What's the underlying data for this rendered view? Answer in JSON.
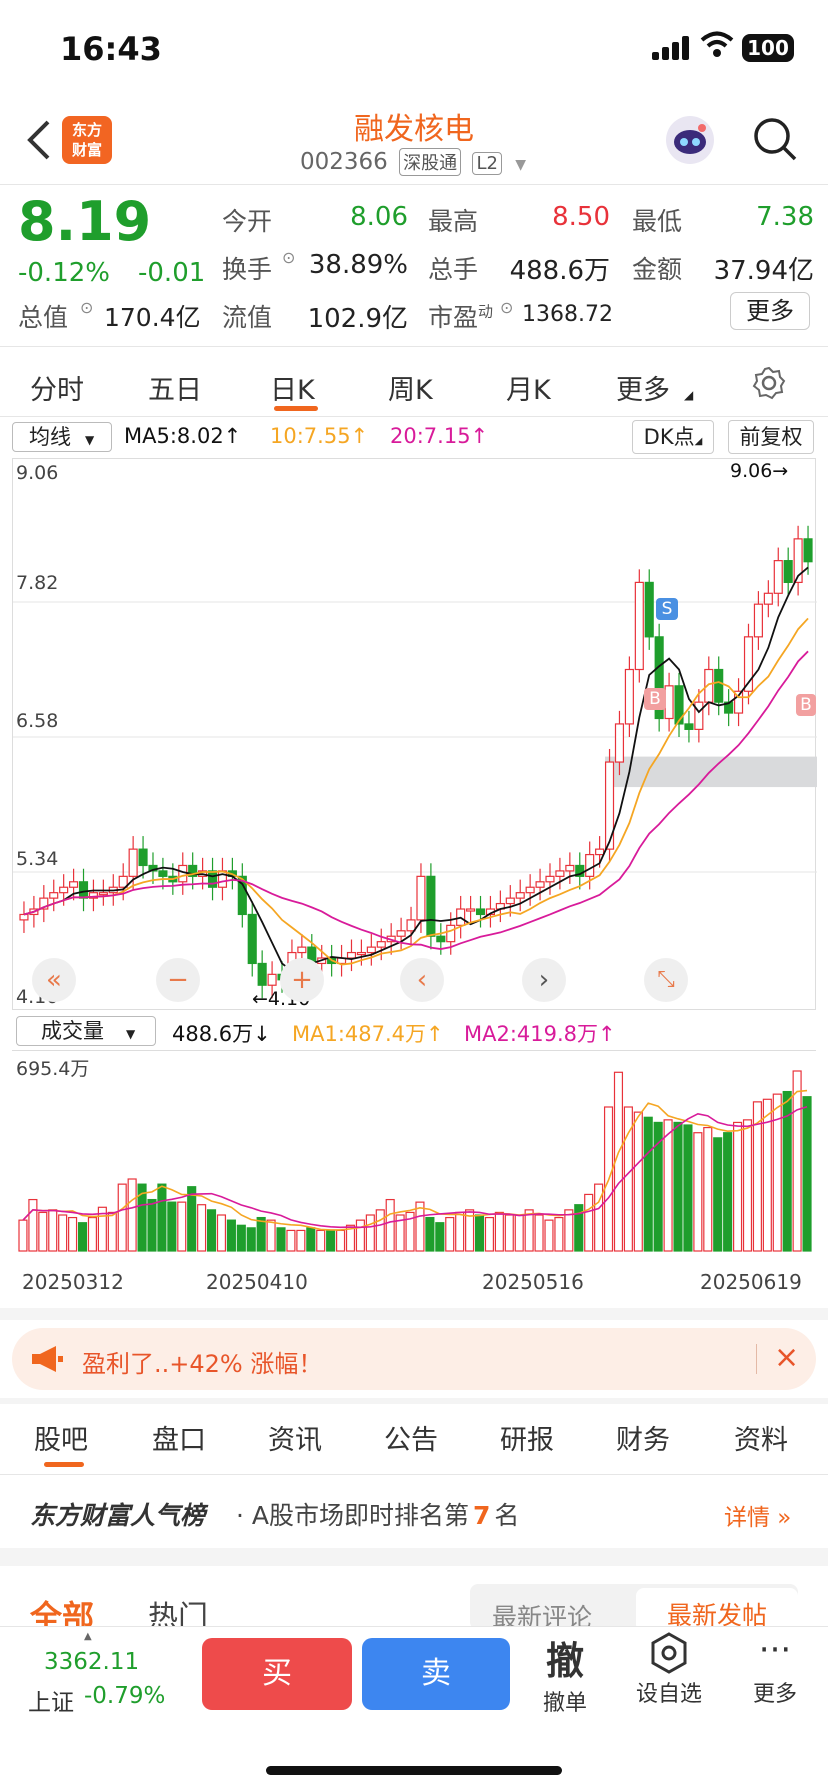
{
  "status": {
    "time": "16:43",
    "battery": "100"
  },
  "header": {
    "logo": "东方\n财富",
    "title": "融发核电",
    "code": "002366",
    "tag1": "深股通",
    "tag2": "L2"
  },
  "quote": {
    "price": "8.19",
    "change_pct": "-0.12%",
    "change": "-0.01",
    "total_value_label": "总值",
    "total_value": "170.4亿",
    "open_label": "今开",
    "open": "8.06",
    "high_label": "最高",
    "high": "8.50",
    "low_label": "最低",
    "low": "7.38",
    "turnover_label": "换手",
    "turnover": "38.89%",
    "volume_label": "总手",
    "volume": "488.6万",
    "amount_label": "金额",
    "amount": "37.94亿",
    "float_label": "流值",
    "float_value": "102.9亿",
    "pe_label": "市盈",
    "pe_sup": "动",
    "pe": "1368.72",
    "more": "更多"
  },
  "ktabs": [
    "分时",
    "五日",
    "日K",
    "周K",
    "月K",
    "更多"
  ],
  "chart_bar": {
    "ma_select": "均线",
    "ma5": "MA5:8.02↑",
    "ma10": "10:7.55↑",
    "ma20": "20:7.15↑",
    "dk": "DK点",
    "fq": "前复权"
  },
  "price_axis": {
    "top": "9.06",
    "l2": "7.82",
    "l3": "6.58",
    "l4": "5.34",
    "bottom": "4.10",
    "max_mark": "9.06→",
    "min_mark": "←4.10"
  },
  "volume_bar": {
    "select": "成交量",
    "vol": "488.6万↓",
    "ma1": "MA1:487.4万↑",
    "ma2": "MA2:419.8万↑",
    "max": "695.4万"
  },
  "dates": [
    "20250312",
    "20250410",
    "20250516",
    "20250619"
  ],
  "markers": {
    "s": "S",
    "b": "B"
  },
  "promo": {
    "text": "盈利了..+42% 涨幅！"
  },
  "section_tabs": [
    "股吧",
    "盘口",
    "资讯",
    "公告",
    "研报",
    "财务",
    "资料"
  ],
  "rank": {
    "brand": "东方财富人气榜",
    "text": "A股市场即时排名第",
    "num": "7",
    "unit": "名",
    "detail": "详情"
  },
  "feed_tabs": {
    "all": "全部",
    "hot": "热门",
    "latest_comment": "最新评论",
    "latest_post": "最新发帖"
  },
  "bottom": {
    "index_value": "3362.11",
    "index_name": "上证",
    "index_pct": "-0.79%",
    "buy": "买",
    "sell": "卖",
    "cancel_icon": "撤",
    "cancel": "撤单",
    "fav": "设自选",
    "more": "更多"
  },
  "colors": {
    "up": "#e8323a",
    "down": "#1f9e2c",
    "accent": "#f0661e"
  },
  "chart_data": {
    "type": "candlestick",
    "ylim": [
      4.1,
      9.06
    ],
    "ytick_labels": [
      "9.06",
      "7.82",
      "6.58",
      "5.34",
      "4.10"
    ],
    "x_labels": [
      "20250312",
      "20250410",
      "20250516",
      "20250619"
    ],
    "series": [
      {
        "name": "MA5",
        "last": 8.02
      },
      {
        "name": "10",
        "last": 7.55
      },
      {
        "name": "20",
        "last": 7.15
      }
    ],
    "volume_max": "695.4万"
  }
}
